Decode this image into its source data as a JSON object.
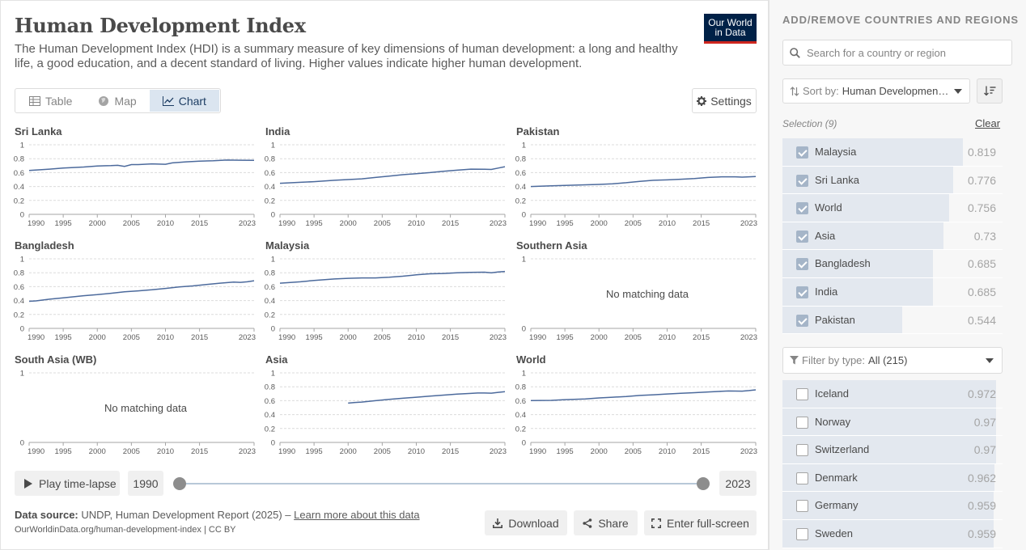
{
  "header": {
    "title": "Human Development Index",
    "subtitle": "The Human Development Index (HDI) is a summary measure of key dimensions of human development: a long and healthy life, a good education, and a decent standard of living. Higher values indicate higher human development.",
    "logo_line1": "Our World",
    "logo_line2": "in Data"
  },
  "tabs": [
    {
      "label": "Table",
      "icon": "table-icon",
      "active": false
    },
    {
      "label": "Map",
      "icon": "globe-icon",
      "active": false
    },
    {
      "label": "Chart",
      "icon": "line-chart-icon",
      "active": true
    }
  ],
  "settings_label": "Settings",
  "no_data_label": "No matching data",
  "chart_data": {
    "type": "line",
    "layout": "small-multiples",
    "grid": true,
    "ylim": [
      0,
      1
    ],
    "yticks": [
      "0",
      "0.2",
      "0.4",
      "0.6",
      "0.8",
      "1"
    ],
    "xlim": [
      1990,
      2023
    ],
    "xticks": [
      "1990",
      "1995",
      "2000",
      "2005",
      "2010",
      "2015",
      "2023"
    ],
    "line_color": "#4c6a9c",
    "facets": [
      {
        "title": "Sri Lanka",
        "has_data": true,
        "x": [
          1990,
          1993,
          1995,
          1998,
          2000,
          2002,
          2003,
          2004,
          2005,
          2006,
          2008,
          2010,
          2011,
          2013,
          2015,
          2017,
          2019,
          2021,
          2023
        ],
        "y": [
          0.63,
          0.65,
          0.665,
          0.68,
          0.695,
          0.7,
          0.705,
          0.69,
          0.715,
          0.715,
          0.725,
          0.72,
          0.74,
          0.755,
          0.765,
          0.77,
          0.78,
          0.778,
          0.776
        ]
      },
      {
        "title": "India",
        "has_data": true,
        "x": [
          1990,
          1993,
          1995,
          1998,
          2000,
          2002,
          2004,
          2006,
          2008,
          2010,
          2012,
          2014,
          2016,
          2018,
          2020,
          2021,
          2022,
          2023
        ],
        "y": [
          0.446,
          0.46,
          0.47,
          0.49,
          0.5,
          0.51,
          0.53,
          0.55,
          0.57,
          0.585,
          0.6,
          0.62,
          0.635,
          0.65,
          0.648,
          0.645,
          0.665,
          0.685
        ]
      },
      {
        "title": "Pakistan",
        "has_data": true,
        "x": [
          1990,
          1993,
          1995,
          1998,
          2000,
          2002,
          2004,
          2006,
          2008,
          2010,
          2012,
          2014,
          2016,
          2018,
          2020,
          2021,
          2023
        ],
        "y": [
          0.4,
          0.41,
          0.415,
          0.425,
          0.43,
          0.44,
          0.455,
          0.475,
          0.49,
          0.495,
          0.505,
          0.515,
          0.53,
          0.54,
          0.54,
          0.535,
          0.544
        ]
      },
      {
        "title": "Bangladesh",
        "has_data": true,
        "x": [
          1990,
          1991,
          1993,
          1995,
          1998,
          2000,
          2002,
          2004,
          2006,
          2008,
          2010,
          2012,
          2014,
          2016,
          2018,
          2020,
          2021,
          2022,
          2023
        ],
        "y": [
          0.39,
          0.395,
          0.42,
          0.44,
          0.47,
          0.485,
          0.505,
          0.525,
          0.54,
          0.555,
          0.575,
          0.595,
          0.61,
          0.63,
          0.65,
          0.665,
          0.662,
          0.67,
          0.685
        ]
      },
      {
        "title": "Malaysia",
        "has_data": true,
        "x": [
          1990,
          1993,
          1995,
          1998,
          2000,
          2002,
          2004,
          2006,
          2008,
          2010,
          2012,
          2014,
          2016,
          2018,
          2020,
          2021,
          2022,
          2023
        ],
        "y": [
          0.65,
          0.67,
          0.69,
          0.71,
          0.72,
          0.725,
          0.725,
          0.735,
          0.75,
          0.77,
          0.785,
          0.79,
          0.8,
          0.805,
          0.808,
          0.8,
          0.81,
          0.819
        ]
      },
      {
        "title": "Southern Asia",
        "has_data": false,
        "x": [],
        "y": []
      },
      {
        "title": "South Asia (WB)",
        "has_data": false,
        "x": [],
        "y": []
      },
      {
        "title": "Asia",
        "has_data": true,
        "x": [
          2000,
          2001,
          2002,
          2004,
          2006,
          2008,
          2010,
          2012,
          2014,
          2016,
          2018,
          2019,
          2020,
          2021,
          2022,
          2023
        ],
        "y": [
          0.565,
          0.575,
          0.58,
          0.6,
          0.62,
          0.635,
          0.65,
          0.665,
          0.68,
          0.695,
          0.705,
          0.71,
          0.71,
          0.708,
          0.72,
          0.73
        ]
      },
      {
        "title": "World",
        "has_data": true,
        "x": [
          1990,
          1993,
          1995,
          1998,
          2000,
          2002,
          2004,
          2006,
          2008,
          2010,
          2012,
          2014,
          2016,
          2018,
          2019,
          2020,
          2021,
          2022,
          2023
        ],
        "y": [
          0.601,
          0.605,
          0.615,
          0.625,
          0.64,
          0.65,
          0.66,
          0.675,
          0.685,
          0.697,
          0.707,
          0.715,
          0.725,
          0.735,
          0.74,
          0.738,
          0.737,
          0.745,
          0.756
        ]
      }
    ]
  },
  "timeline": {
    "play_label": "Play time-lapse",
    "start_year": "1990",
    "end_year": "2023"
  },
  "footer": {
    "source_label": "Data source:",
    "source_text": "UNDP, Human Development Report (2025) –",
    "learn_more": "Learn more about this data",
    "url": "OurWorldinData.org/human-development-index | CC BY",
    "download_label": "Download",
    "share_label": "Share",
    "fullscreen_label": "Enter full-screen"
  },
  "panel": {
    "heading": "ADD/REMOVE COUNTRIES AND REGIONS",
    "search_placeholder": "Search for a country or region",
    "sort_label": "Sort by:",
    "sort_value": "Human Development Index",
    "selection_label": "Selection (9)",
    "clear_label": "Clear",
    "selected": [
      {
        "name": "Malaysia",
        "value": "0.819",
        "fraction": 0.819
      },
      {
        "name": "Sri Lanka",
        "value": "0.776",
        "fraction": 0.776
      },
      {
        "name": "World",
        "value": "0.756",
        "fraction": 0.756
      },
      {
        "name": "Asia",
        "value": "0.73",
        "fraction": 0.73
      },
      {
        "name": "Bangladesh",
        "value": "0.685",
        "fraction": 0.685
      },
      {
        "name": "India",
        "value": "0.685",
        "fraction": 0.685
      },
      {
        "name": "Pakistan",
        "value": "0.544",
        "fraction": 0.544
      }
    ],
    "filter_label": "Filter by type:",
    "filter_value": "All (215)",
    "available": [
      {
        "name": "Iceland",
        "value": "0.972",
        "fraction": 0.972
      },
      {
        "name": "Norway",
        "value": "0.97",
        "fraction": 0.97
      },
      {
        "name": "Switzerland",
        "value": "0.97",
        "fraction": 0.97
      },
      {
        "name": "Denmark",
        "value": "0.962",
        "fraction": 0.962
      },
      {
        "name": "Germany",
        "value": "0.959",
        "fraction": 0.959
      },
      {
        "name": "Sweden",
        "value": "0.959",
        "fraction": 0.959
      }
    ]
  }
}
